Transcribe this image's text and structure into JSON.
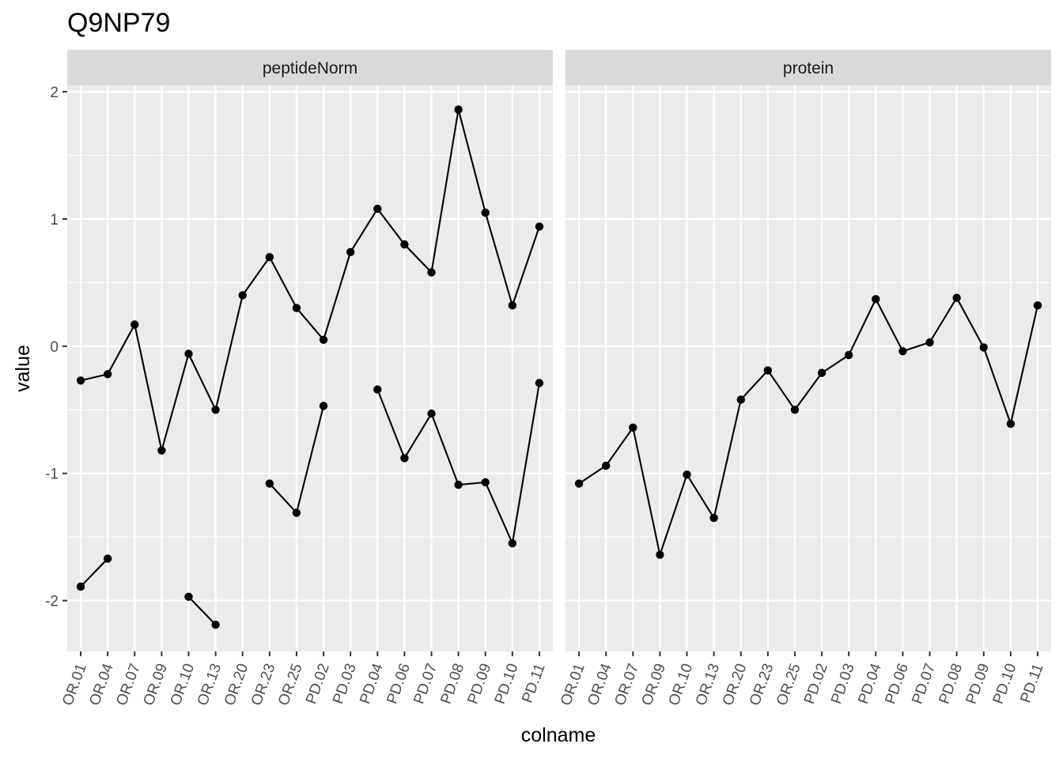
{
  "chart_data": {
    "type": "line",
    "title": "Q9NP79",
    "xlabel": "colname",
    "ylabel": "value",
    "ylim": [
      -2.4,
      2.05
    ],
    "yticks": [
      -2,
      -1,
      0,
      1,
      2
    ],
    "categories": [
      "OR.01",
      "OR.04",
      "OR.07",
      "OR.09",
      "OR.10",
      "OR.13",
      "OR.20",
      "OR.23",
      "OR.25",
      "PD.02",
      "PD.03",
      "PD.04",
      "PD.06",
      "PD.07",
      "PD.08",
      "PD.09",
      "PD.10",
      "PD.11"
    ],
    "panels": [
      {
        "label": "peptideNorm",
        "series": [
          {
            "values": [
              -0.27,
              -0.22,
              0.17,
              -0.82,
              -0.06,
              -0.5,
              0.4,
              0.7,
              0.3,
              0.05,
              0.74,
              1.08,
              0.8,
              0.58,
              1.86,
              1.05,
              0.32,
              0.94
            ]
          },
          {
            "values": [
              -1.89,
              -1.67,
              null,
              null,
              -1.97,
              -2.19,
              null,
              -1.08,
              -1.31,
              -0.47,
              null,
              -0.34,
              -0.88,
              -0.53,
              -1.09,
              -1.07,
              -1.55,
              -0.29
            ]
          }
        ]
      },
      {
        "label": "protein",
        "series": [
          {
            "values": [
              -1.08,
              -0.94,
              -0.64,
              -1.64,
              -1.01,
              -1.35,
              -0.42,
              -0.19,
              -0.5,
              -0.21,
              -0.07,
              0.37,
              -0.04,
              0.03,
              0.38,
              -0.01,
              -0.61,
              0.32
            ]
          }
        ]
      }
    ],
    "grid": true,
    "colors": {
      "panel_bg": "#ebebeb",
      "strip_bg": "#d9d9d9",
      "grid": "#ffffff",
      "line": "#000000",
      "tick": "#333333"
    }
  }
}
